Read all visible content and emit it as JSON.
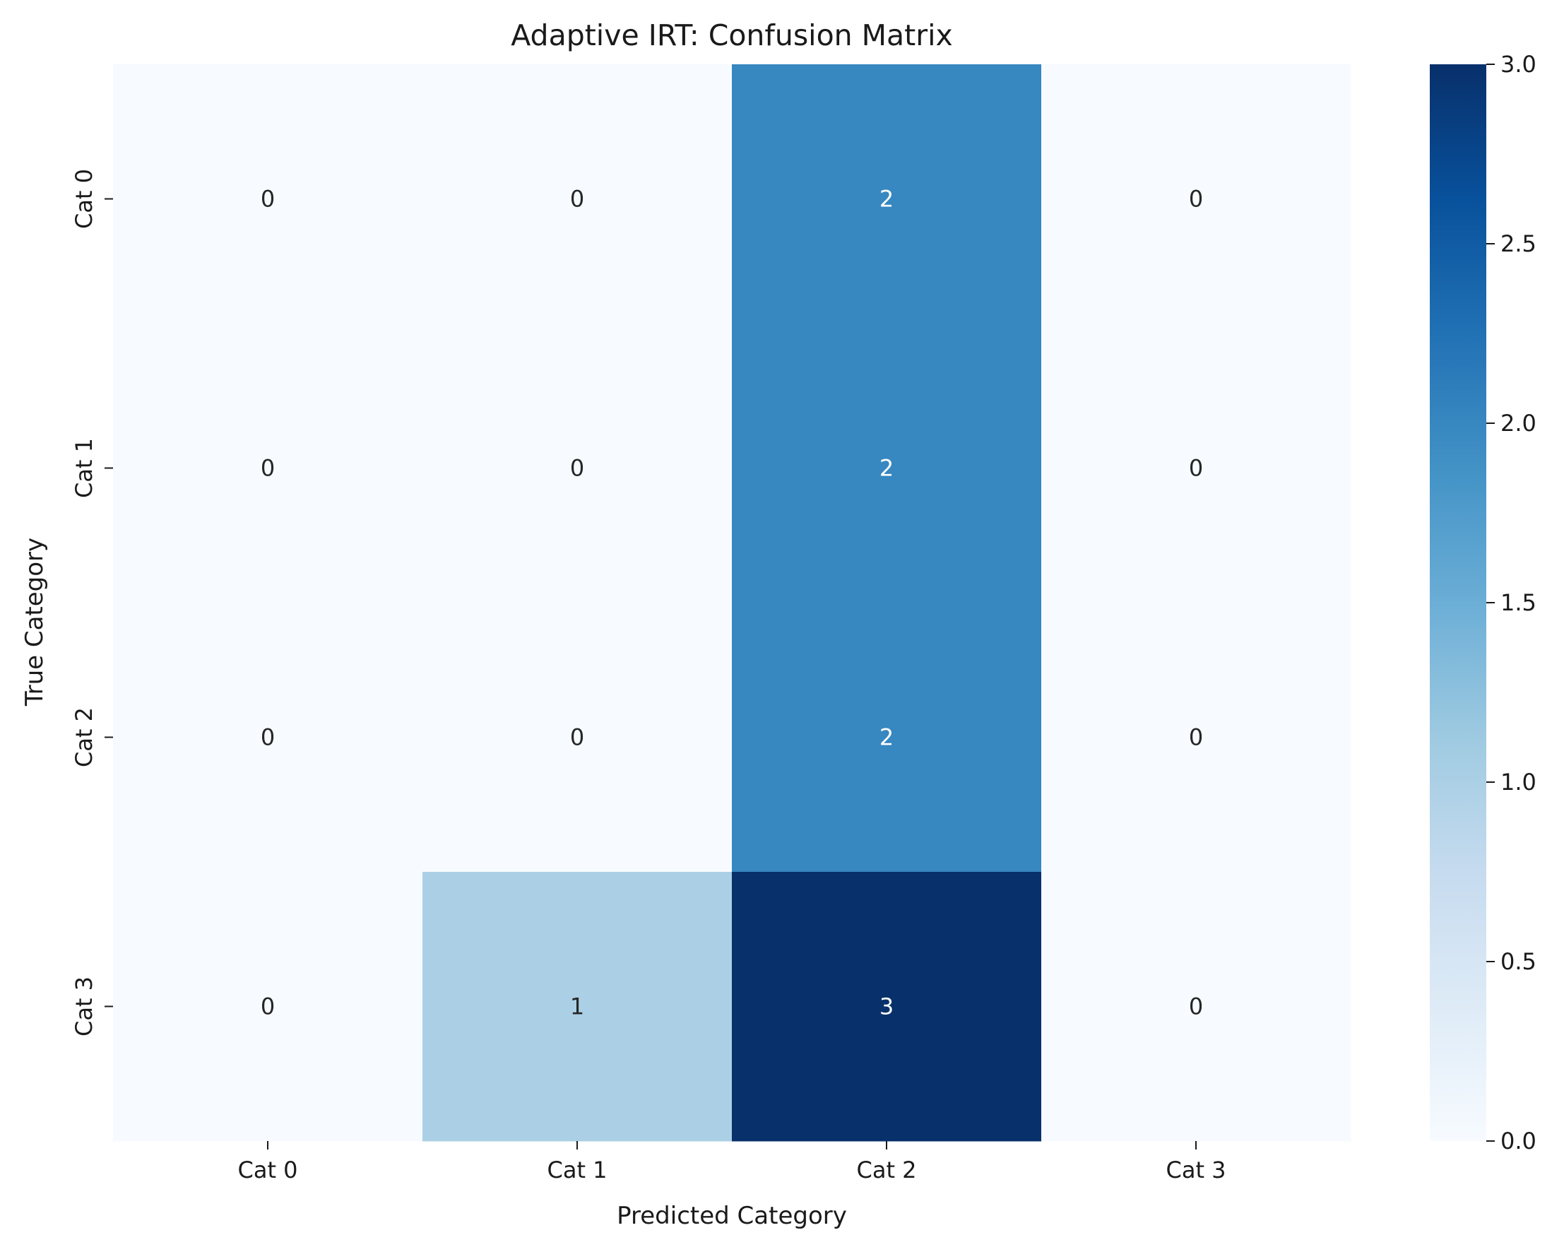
{
  "chart_data": {
    "type": "heatmap",
    "title": "Adaptive IRT: Confusion Matrix",
    "xlabel": "Predicted Category",
    "ylabel": "True Category",
    "x_categories": [
      "Cat 0",
      "Cat 1",
      "Cat 2",
      "Cat 3"
    ],
    "y_categories": [
      "Cat 0",
      "Cat 1",
      "Cat 2",
      "Cat 3"
    ],
    "values": [
      [
        0,
        0,
        2,
        0
      ],
      [
        0,
        0,
        2,
        0
      ],
      [
        0,
        0,
        2,
        0
      ],
      [
        0,
        1,
        3,
        0
      ]
    ],
    "colormap": "Blues",
    "vmin": 0,
    "vmax": 3,
    "colorbar_ticks": [
      "0.0",
      "0.5",
      "1.0",
      "1.5",
      "2.0",
      "2.5",
      "3.0"
    ],
    "colorbar_tick_values": [
      0,
      0.5,
      1.0,
      1.5,
      2.0,
      2.5,
      3.0
    ],
    "colormap_stops": [
      "#f7fbff",
      "#deebf7",
      "#c6dbef",
      "#9ecae1",
      "#6baed6",
      "#4292c6",
      "#2171b5",
      "#08519c",
      "#08306b"
    ],
    "annotation_dark_color": "#262626",
    "annotation_light_color": "#ffffff",
    "annotations": true
  }
}
